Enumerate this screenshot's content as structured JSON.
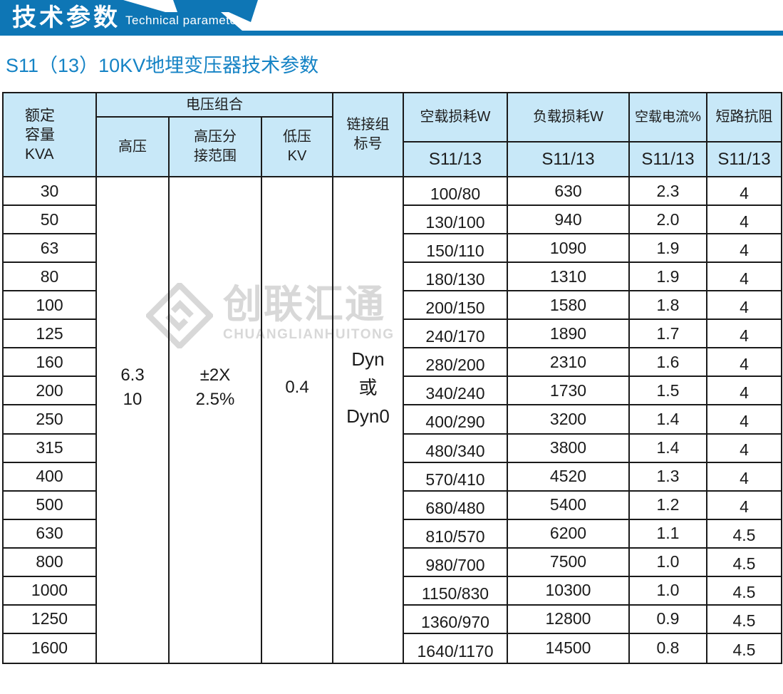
{
  "banner": {
    "title_cn": "技术参数",
    "title_en": "Technical parameter"
  },
  "section_title": "S11（13）10KV地埋变压器技术参数",
  "watermark": {
    "logo": "diamond-interlock-logo",
    "name_cn": "创联汇通",
    "name_en": "CHUANGLIANHUITONG"
  },
  "colors": {
    "banner_blue": "#0e76b5",
    "subtitle_blue": "#1583c5",
    "header_bg": "#c8e8f8",
    "grid_border": "#1a1a1a",
    "watermark_gray": "#d8d8d8"
  },
  "table": {
    "headers": {
      "capacity": "额定\n容量\nKVA",
      "voltage_group": "电压组合",
      "hv": "高压",
      "hv_tap": "高压分\n接范围",
      "lv": "低压\nKV",
      "vector_group": "链接组\n标号",
      "no_load_loss": "空载损耗W",
      "load_loss": "负载损耗W",
      "no_load_current": "空载电流%",
      "impedance": "短路抗阻",
      "sub": "S11/13"
    },
    "merged": {
      "hv": "6.3\n10",
      "hv_tap": "±2X\n2.5%",
      "lv": "0.4",
      "vector_group": "Dyn\n或\nDyn0"
    },
    "rows": [
      {
        "kva": "30",
        "noload": "100/80",
        "load": "630",
        "current": "2.3",
        "impedance": "4"
      },
      {
        "kva": "50",
        "noload": "130/100",
        "load": "940",
        "current": "2.0",
        "impedance": "4"
      },
      {
        "kva": "63",
        "noload": "150/110",
        "load": "1090",
        "current": "1.9",
        "impedance": "4"
      },
      {
        "kva": "80",
        "noload": "180/130",
        "load": "1310",
        "current": "1.9",
        "impedance": "4"
      },
      {
        "kva": "100",
        "noload": "200/150",
        "load": "1580",
        "current": "1.8",
        "impedance": "4"
      },
      {
        "kva": "125",
        "noload": "240/170",
        "load": "1890",
        "current": "1.7",
        "impedance": "4"
      },
      {
        "kva": "160",
        "noload": "280/200",
        "load": "2310",
        "current": "1.6",
        "impedance": "4"
      },
      {
        "kva": "200",
        "noload": "340/240",
        "load": "1730",
        "current": "1.5",
        "impedance": "4"
      },
      {
        "kva": "250",
        "noload": "400/290",
        "load": "3200",
        "current": "1.4",
        "impedance": "4"
      },
      {
        "kva": "315",
        "noload": "480/340",
        "load": "3800",
        "current": "1.4",
        "impedance": "4"
      },
      {
        "kva": "400",
        "noload": "570/410",
        "load": "4520",
        "current": "1.3",
        "impedance": "4"
      },
      {
        "kva": "500",
        "noload": "680/480",
        "load": "5400",
        "current": "1.2",
        "impedance": "4"
      },
      {
        "kva": "630",
        "noload": "810/570",
        "load": "6200",
        "current": "1.1",
        "impedance": "4.5"
      },
      {
        "kva": "800",
        "noload": "980/700",
        "load": "7500",
        "current": "1.0",
        "impedance": "4.5"
      },
      {
        "kva": "1000",
        "noload": "1150/830",
        "load": "10300",
        "current": "1.0",
        "impedance": "4.5"
      },
      {
        "kva": "1250",
        "noload": "1360/970",
        "load": "12800",
        "current": "0.9",
        "impedance": "4.5"
      },
      {
        "kva": "1600",
        "noload": "1640/1170",
        "load": "14500",
        "current": "0.8",
        "impedance": "4.5"
      }
    ]
  }
}
